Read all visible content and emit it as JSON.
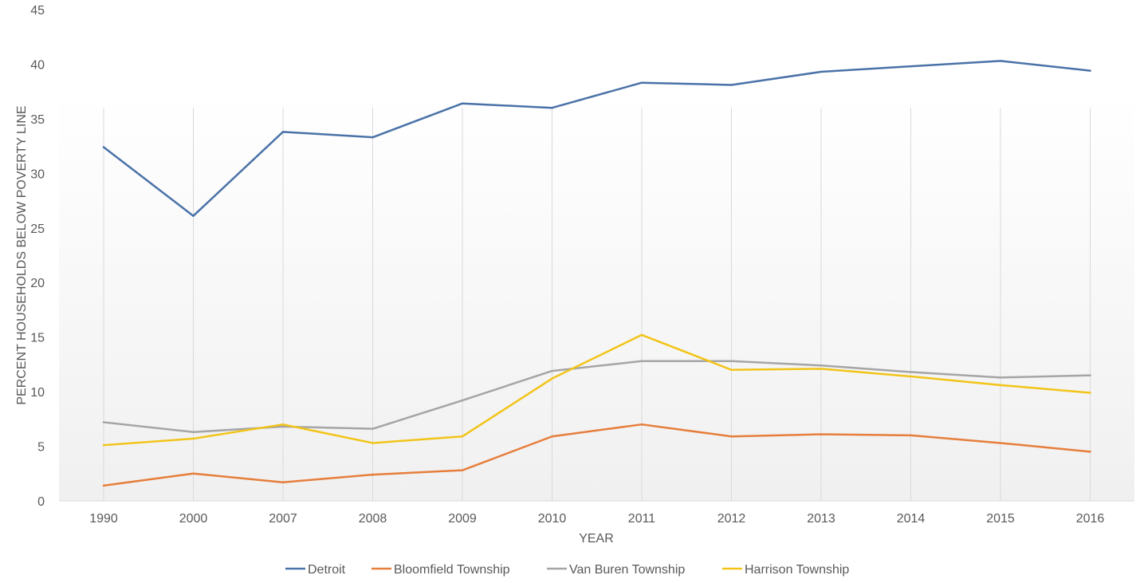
{
  "chart_data": {
    "type": "line",
    "xlabel": "YEAR",
    "ylabel": "PERCENT HOUSEHOLDS BELOW POVERTY LINE",
    "ylim": [
      0,
      45
    ],
    "yticks": [
      0,
      5,
      10,
      15,
      20,
      25,
      30,
      35,
      40,
      45
    ],
    "grid": "vertical",
    "legend_position": "bottom",
    "categories": [
      "1990",
      "2000",
      "2007",
      "2008",
      "2009",
      "2010",
      "2011",
      "2012",
      "2013",
      "2014",
      "2015",
      "2016"
    ],
    "series": [
      {
        "name": "Detroit",
        "color": "#4a72a8",
        "values": [
          32.4,
          26.1,
          33.8,
          33.3,
          36.4,
          36.0,
          38.3,
          38.1,
          39.3,
          39.8,
          40.3,
          39.4
        ]
      },
      {
        "name": "Bloomfield Township",
        "color": "#e67e3c",
        "values": [
          1.4,
          2.5,
          1.7,
          2.4,
          2.8,
          5.9,
          7.0,
          5.9,
          6.1,
          6.0,
          5.3,
          4.5
        ]
      },
      {
        "name": "Van Buren Township",
        "color": "#a5a5a5",
        "values": [
          7.2,
          6.3,
          6.8,
          6.6,
          9.2,
          11.9,
          12.8,
          12.8,
          12.4,
          11.8,
          11.3,
          11.5
        ]
      },
      {
        "name": "Harrison Township",
        "color": "#f2c418",
        "values": [
          5.1,
          5.7,
          7.0,
          5.3,
          5.9,
          11.2,
          15.2,
          12.0,
          12.1,
          11.4,
          10.6,
          9.9
        ]
      }
    ]
  }
}
